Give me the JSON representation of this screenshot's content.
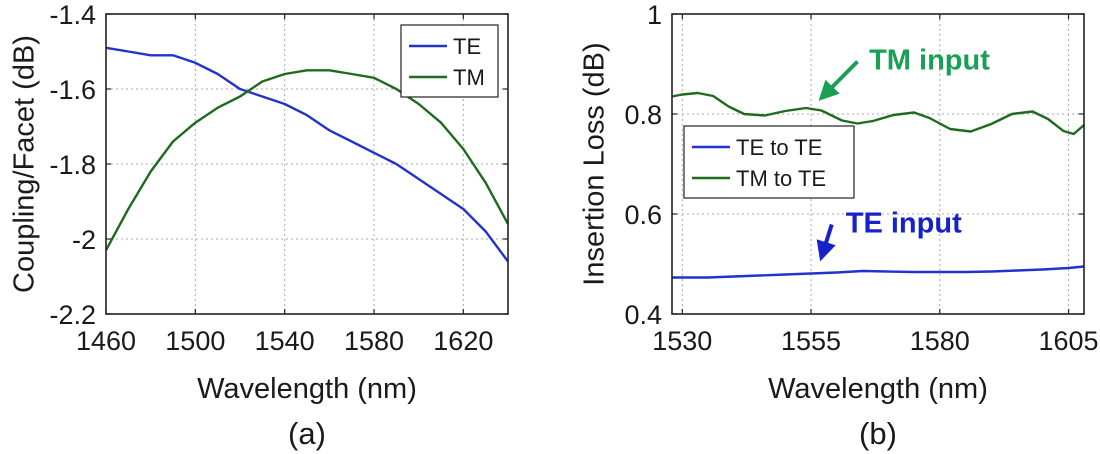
{
  "chart_data": [
    {
      "type": "line",
      "panel_label": "(a)",
      "xlabel": "Wavelength (nm)",
      "ylabel": "Coupling/Facet (dB)",
      "xlim": [
        1460,
        1640
      ],
      "ylim": [
        -2.2,
        -1.4
      ],
      "xticks": [
        1460,
        1500,
        1540,
        1580,
        1620
      ],
      "xtick_labels": [
        "1460",
        "1500",
        "1540",
        "1580",
        "1620"
      ],
      "yticks": [
        -2.2,
        -2.0,
        -1.8,
        -1.6,
        -1.4
      ],
      "ytick_labels": [
        "-2.2",
        "-2",
        "-1.8",
        "-1.6",
        "-1.4"
      ],
      "grid": true,
      "legend_position": "top-right",
      "series": [
        {
          "name": "TE",
          "color": "#2233cc",
          "x": [
            1460,
            1470,
            1480,
            1490,
            1500,
            1510,
            1520,
            1530,
            1540,
            1550,
            1560,
            1570,
            1580,
            1590,
            1600,
            1610,
            1620,
            1630,
            1640
          ],
          "y": [
            -1.49,
            -1.5,
            -1.51,
            -1.51,
            -1.53,
            -1.56,
            -1.6,
            -1.62,
            -1.64,
            -1.67,
            -1.71,
            -1.74,
            -1.77,
            -1.8,
            -1.84,
            -1.88,
            -1.92,
            -1.98,
            -2.06
          ]
        },
        {
          "name": "TM",
          "color": "#1e6b1e",
          "x": [
            1460,
            1470,
            1480,
            1490,
            1500,
            1510,
            1520,
            1530,
            1540,
            1550,
            1560,
            1570,
            1580,
            1590,
            1600,
            1610,
            1620,
            1630,
            1640
          ],
          "y": [
            -2.03,
            -1.92,
            -1.82,
            -1.74,
            -1.69,
            -1.65,
            -1.62,
            -1.58,
            -1.56,
            -1.55,
            -1.55,
            -1.56,
            -1.57,
            -1.6,
            -1.64,
            -1.69,
            -1.76,
            -1.85,
            -1.96
          ]
        }
      ]
    },
    {
      "type": "line",
      "panel_label": "(b)",
      "xlabel": "Wavelength (nm)",
      "ylabel": "Insertion Loss (dB)",
      "xlim": [
        1528,
        1608
      ],
      "ylim": [
        0.4,
        1.0
      ],
      "xticks": [
        1530,
        1555,
        1580,
        1605
      ],
      "xtick_labels": [
        "1530",
        "1555",
        "1580",
        "1605"
      ],
      "yticks": [
        0.4,
        0.6,
        0.8,
        1.0
      ],
      "ytick_labels": [
        "0.4",
        "0.6",
        "0.8",
        "1"
      ],
      "grid": true,
      "legend_position": "center-left",
      "annotations": [
        {
          "text": "TM input",
          "color": "#1aa055",
          "x": 1578,
          "y": 0.889,
          "arrow_to_x": 1557,
          "arrow_to_y": 0.832
        },
        {
          "text": "TE input",
          "color": "#1522cc",
          "x": 1573,
          "y": 0.563,
          "arrow_to_x": 1557,
          "arrow_to_y": 0.513
        }
      ],
      "series": [
        {
          "name": "TE to TE",
          "color": "#2233cc",
          "x": [
            1528,
            1535,
            1540,
            1545,
            1550,
            1555,
            1560,
            1565,
            1570,
            1575,
            1580,
            1585,
            1590,
            1595,
            1600,
            1605,
            1608
          ],
          "y": [
            0.473,
            0.473,
            0.475,
            0.477,
            0.479,
            0.481,
            0.483,
            0.486,
            0.485,
            0.484,
            0.484,
            0.484,
            0.485,
            0.487,
            0.489,
            0.492,
            0.495
          ]
        },
        {
          "name": "TM to TE",
          "color": "#1e6b1e",
          "x": [
            1528,
            1530,
            1533,
            1536,
            1539,
            1542,
            1546,
            1550,
            1554,
            1557,
            1561,
            1564,
            1567,
            1571,
            1575,
            1578,
            1582,
            1586,
            1590,
            1594,
            1598,
            1601,
            1604,
            1606,
            1608
          ],
          "y": [
            0.835,
            0.839,
            0.842,
            0.836,
            0.815,
            0.8,
            0.797,
            0.806,
            0.812,
            0.807,
            0.787,
            0.781,
            0.786,
            0.798,
            0.803,
            0.792,
            0.77,
            0.765,
            0.78,
            0.8,
            0.805,
            0.79,
            0.766,
            0.76,
            0.778
          ]
        }
      ]
    }
  ]
}
